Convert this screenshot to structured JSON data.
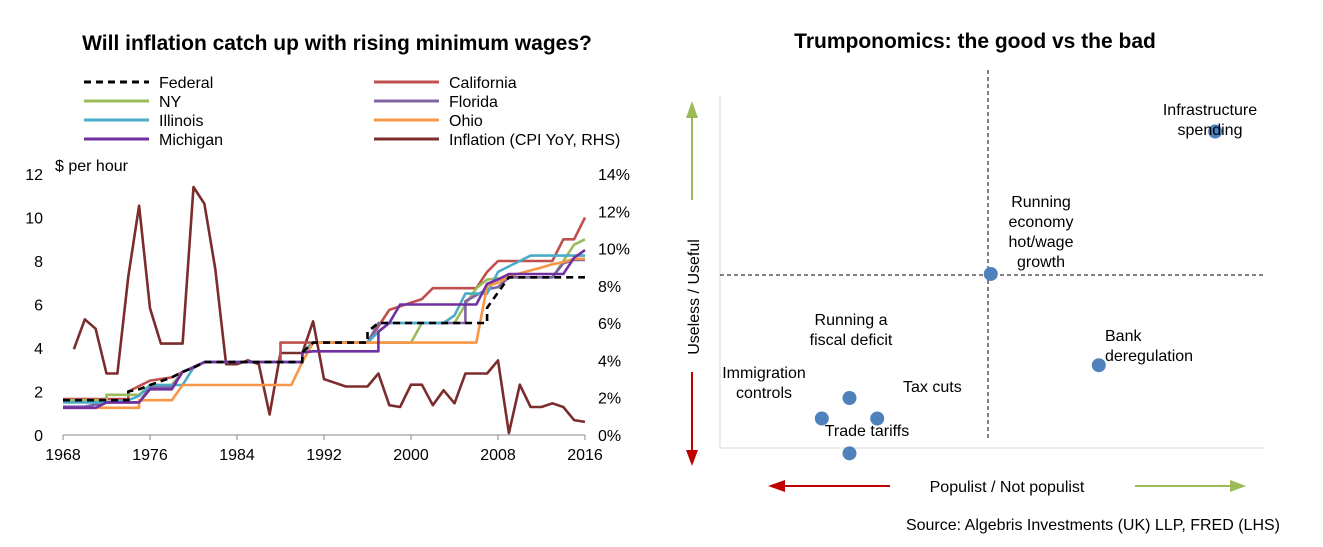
{
  "chart_data": [
    {
      "type": "line",
      "title": "Will inflation catch up with rising minimum wages?",
      "ylabel": "$ per hour",
      "ylim": [
        0,
        12
      ],
      "y2lim": [
        0,
        14
      ],
      "xlim": [
        1968,
        2016
      ],
      "x_ticks": [
        "1968",
        "1976",
        "1984",
        "1992",
        "2000",
        "2008",
        "2016"
      ],
      "y_ticks": [
        "0",
        "2",
        "4",
        "6",
        "8",
        "10",
        "12"
      ],
      "y2_ticks": [
        "0%",
        "2%",
        "4%",
        "6%",
        "8%",
        "10%",
        "12%",
        "14%"
      ],
      "series": [
        {
          "name": "Federal",
          "color": "#000000",
          "dash": true,
          "axis": "left",
          "points": [
            [
              1968,
              1.6
            ],
            [
              1974,
              1.6
            ],
            [
              1974,
              2.0
            ],
            [
              1975,
              2.1
            ],
            [
              1976,
              2.3
            ],
            [
              1978,
              2.65
            ],
            [
              1979,
              2.9
            ],
            [
              1980,
              3.1
            ],
            [
              1981,
              3.35
            ],
            [
              1990,
              3.35
            ],
            [
              1990,
              3.8
            ],
            [
              1991,
              4.25
            ],
            [
              1996,
              4.25
            ],
            [
              1996,
              4.75
            ],
            [
              1997,
              5.15
            ],
            [
              2007,
              5.15
            ],
            [
              2007,
              5.85
            ],
            [
              2008,
              6.55
            ],
            [
              2009,
              7.25
            ],
            [
              2016,
              7.25
            ]
          ]
        },
        {
          "name": "California",
          "color": "#C0504D",
          "axis": "left",
          "points": [
            [
              1968,
              1.65
            ],
            [
              1974,
              1.65
            ],
            [
              1974,
              2.0
            ],
            [
              1976,
              2.5
            ],
            [
              1978,
              2.65
            ],
            [
              1979,
              2.9
            ],
            [
              1980,
              3.1
            ],
            [
              1981,
              3.35
            ],
            [
              1988,
              3.35
            ],
            [
              1988,
              4.25
            ],
            [
              1996,
              4.25
            ],
            [
              1997,
              5.0
            ],
            [
              1998,
              5.75
            ],
            [
              2001,
              6.25
            ],
            [
              2002,
              6.75
            ],
            [
              2006,
              6.75
            ],
            [
              2007,
              7.5
            ],
            [
              2008,
              8.0
            ],
            [
              2013,
              8.0
            ],
            [
              2014,
              9.0
            ],
            [
              2015,
              9.0
            ],
            [
              2016,
              10.0
            ]
          ]
        },
        {
          "name": "NY",
          "color": "#9BBB59",
          "axis": "left",
          "points": [
            [
              1968,
              1.6
            ],
            [
              1972,
              1.6
            ],
            [
              1972,
              1.85
            ],
            [
              1975,
              1.85
            ],
            [
              1976,
              2.3
            ],
            [
              1978,
              2.3
            ],
            [
              1979,
              2.9
            ],
            [
              1980,
              3.1
            ],
            [
              1981,
              3.35
            ],
            [
              1990,
              3.35
            ],
            [
              1990,
              3.8
            ],
            [
              1991,
              4.25
            ],
            [
              2000,
              4.25
            ],
            [
              2001,
              5.15
            ],
            [
              2004,
              5.15
            ],
            [
              2005,
              6.0
            ],
            [
              2006,
              6.75
            ],
            [
              2007,
              7.15
            ],
            [
              2009,
              7.25
            ],
            [
              2013,
              7.25
            ],
            [
              2014,
              8.0
            ],
            [
              2015,
              8.75
            ],
            [
              2016,
              9.0
            ]
          ]
        },
        {
          "name": "Florida",
          "color": "#8064A2",
          "axis": "left",
          "points": [
            [
              1968,
              1.3
            ],
            [
              1970,
              1.3
            ],
            [
              1972,
              1.5
            ],
            [
              1975,
              1.5
            ],
            [
              1976,
              2.2
            ],
            [
              1978,
              2.2
            ],
            [
              1979,
              2.9
            ],
            [
              1981,
              3.35
            ],
            [
              1990,
              3.35
            ],
            [
              1990,
              3.8
            ],
            [
              1991,
              4.25
            ],
            [
              1996,
              4.25
            ],
            [
              1997,
              5.15
            ],
            [
              2005,
              5.15
            ],
            [
              2005,
              6.15
            ],
            [
              2007,
              6.7
            ],
            [
              2008,
              6.8
            ],
            [
              2009,
              7.25
            ],
            [
              2013,
              7.25
            ],
            [
              2014,
              7.9
            ],
            [
              2015,
              8.05
            ],
            [
              2016,
              8.05
            ]
          ]
        },
        {
          "name": "Illinois",
          "color": "#4BACC6",
          "axis": "left",
          "points": [
            [
              1968,
              1.5
            ],
            [
              1972,
              1.5
            ],
            [
              1974,
              1.6
            ],
            [
              1975,
              1.8
            ],
            [
              1976,
              2.3
            ],
            [
              1979,
              2.3
            ],
            [
              1980,
              3.1
            ],
            [
              1981,
              3.35
            ],
            [
              1990,
              3.35
            ],
            [
              1990,
              3.8
            ],
            [
              1991,
              4.25
            ],
            [
              1996,
              4.25
            ],
            [
              1997,
              4.75
            ],
            [
              1998,
              5.15
            ],
            [
              2003,
              5.15
            ],
            [
              2004,
              5.5
            ],
            [
              2005,
              6.5
            ],
            [
              2007,
              6.5
            ],
            [
              2008,
              7.5
            ],
            [
              2009,
              7.75
            ],
            [
              2010,
              8.0
            ],
            [
              2011,
              8.25
            ],
            [
              2016,
              8.25
            ]
          ]
        },
        {
          "name": "Ohio",
          "color": "#F79646",
          "axis": "left",
          "points": [
            [
              1968,
              1.25
            ],
            [
              1975,
              1.25
            ],
            [
              1975,
              1.6
            ],
            [
              1978,
              1.6
            ],
            [
              1979,
              2.3
            ],
            [
              1989,
              2.3
            ],
            [
              1990,
              3.35
            ],
            [
              1991,
              4.25
            ],
            [
              2006,
              4.25
            ],
            [
              2007,
              6.85
            ],
            [
              2008,
              7.0
            ],
            [
              2009,
              7.3
            ],
            [
              2012,
              7.7
            ],
            [
              2013,
              7.85
            ],
            [
              2014,
              7.95
            ],
            [
              2015,
              8.1
            ],
            [
              2016,
              8.1
            ]
          ]
        },
        {
          "name": "Michigan",
          "color": "#7030A0",
          "axis": "left",
          "points": [
            [
              1968,
              1.25
            ],
            [
              1971,
              1.25
            ],
            [
              1972,
              1.5
            ],
            [
              1975,
              1.5
            ],
            [
              1976,
              2.1
            ],
            [
              1978,
              2.1
            ],
            [
              1979,
              2.9
            ],
            [
              1980,
              3.1
            ],
            [
              1981,
              3.35
            ],
            [
              1990,
              3.35
            ],
            [
              1990,
              3.8
            ],
            [
              1991,
              3.85
            ],
            [
              1997,
              3.85
            ],
            [
              1997,
              4.75
            ],
            [
              1998,
              5.15
            ],
            [
              1999,
              6.0
            ],
            [
              2006,
              6.0
            ],
            [
              2007,
              6.95
            ],
            [
              2008,
              7.15
            ],
            [
              2009,
              7.4
            ],
            [
              2014,
              7.4
            ],
            [
              2015,
              8.15
            ],
            [
              2016,
              8.5
            ]
          ]
        },
        {
          "name": "Inflation (CPI YoY, RHS)",
          "color": "#7B2C2C",
          "axis": "right",
          "points": [
            [
              1969,
              4.6
            ],
            [
              1970,
              6.2
            ],
            [
              1971,
              5.7
            ],
            [
              1972,
              3.3
            ],
            [
              1973,
              3.3
            ],
            [
              1974,
              8.5
            ],
            [
              1975,
              12.3
            ],
            [
              1976,
              6.8
            ],
            [
              1977,
              4.9
            ],
            [
              1978,
              4.9
            ],
            [
              1979,
              4.9
            ],
            [
              1980,
              13.3
            ],
            [
              1981,
              12.4
            ],
            [
              1982,
              8.9
            ],
            [
              1983,
              3.8
            ],
            [
              1984,
              3.8
            ],
            [
              1985,
              4.0
            ],
            [
              1986,
              3.8
            ],
            [
              1987,
              1.1
            ],
            [
              1988,
              4.4
            ],
            [
              1989,
              4.4
            ],
            [
              1990,
              4.4
            ],
            [
              1991,
              6.1
            ],
            [
              1992,
              3.0
            ],
            [
              1993,
              2.8
            ],
            [
              1994,
              2.6
            ],
            [
              1995,
              2.6
            ],
            [
              1996,
              2.6
            ],
            [
              1997,
              3.3
            ],
            [
              1998,
              1.6
            ],
            [
              1999,
              1.5
            ],
            [
              2000,
              2.7
            ],
            [
              2001,
              2.7
            ],
            [
              2002,
              1.6
            ],
            [
              2003,
              2.4
            ],
            [
              2004,
              1.7
            ],
            [
              2005,
              3.3
            ],
            [
              2006,
              3.3
            ],
            [
              2007,
              3.3
            ],
            [
              2008,
              4.0
            ],
            [
              2009,
              0.1
            ],
            [
              2010,
              2.7
            ],
            [
              2011,
              1.5
            ],
            [
              2012,
              1.5
            ],
            [
              2013,
              1.7
            ],
            [
              2014,
              1.5
            ],
            [
              2015,
              0.8
            ],
            [
              2016,
              0.7
            ]
          ]
        }
      ]
    },
    {
      "type": "scatter",
      "title": "Trumponomics: the good vs the bad",
      "xlabel": "Populist / Not populist",
      "ylabel": "Useless / Useful",
      "xlim": [
        -10,
        10
      ],
      "ylim": [
        -10,
        10
      ],
      "point_color": "#4F81BD",
      "points": [
        {
          "label": "Infrastructure spending",
          "lines": [
            "Infrastructure",
            "spending"
          ],
          "x": 8.2,
          "y": 7.0
        },
        {
          "label": "Running economy hot/wage growth",
          "lines": [
            "Running",
            "economy",
            "hot/wage",
            "growth"
          ],
          "x": 0.1,
          "y": 0.05
        },
        {
          "label": "Bank deregulation",
          "lines": [
            "Bank",
            "deregulation"
          ],
          "x": 4.0,
          "y": -4.4
        },
        {
          "label": "Running a fiscal deficit",
          "lines": [
            "Running a",
            "fiscal deficit"
          ],
          "x": -5.0,
          "y": -6.0
        },
        {
          "label": "Immigration controls",
          "lines": [
            "Immigration",
            "controls"
          ],
          "x": -6.0,
          "y": -7.0
        },
        {
          "label": "Tax cuts",
          "lines": [
            "Tax cuts"
          ],
          "x": -4.0,
          "y": -7.0
        },
        {
          "label": "Trade tariffs",
          "lines": [
            "Trade tariffs"
          ],
          "x": -5.0,
          "y": -8.7
        }
      ],
      "arrow_colors": {
        "up": "#9BBB59",
        "down": "#C00000",
        "left": "#C00000",
        "right": "#9BBB59"
      }
    }
  ],
  "source": "Source: Algebris Investments (UK) LLP, FRED (LHS)"
}
